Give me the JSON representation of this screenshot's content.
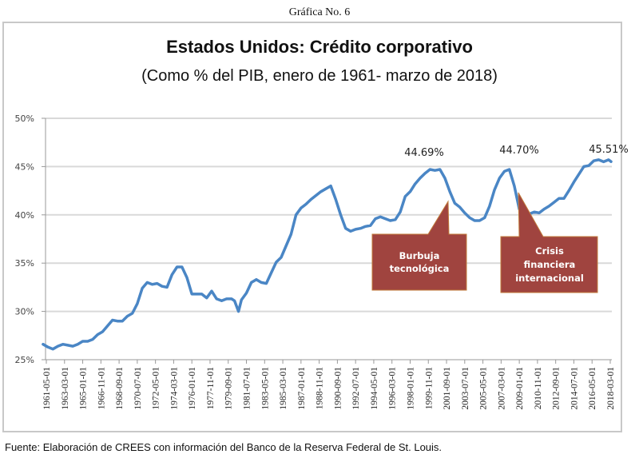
{
  "header": {
    "figure_label": "Gráfica No. 6"
  },
  "footer": {
    "source": "Fuente: Elaboración de CREES con información del Banco de la Reserva Federal de St. Louis."
  },
  "colors": {
    "line": "#4a86c5",
    "callout_fill": "#a0443f",
    "callout_border": "#c07a3a",
    "grid": "#d9d9d9"
  },
  "chart_data": {
    "type": "line",
    "title": "Estados Unidos: Crédito corporativo",
    "subtitle": "(Como % del PIB, enero de 1961- marzo de 2018)",
    "xlabel": "",
    "ylabel": "",
    "ylim": [
      25,
      50
    ],
    "y_ticks": [
      "25%",
      "30%",
      "35%",
      "40%",
      "45%",
      "50%"
    ],
    "y_tick_values": [
      25,
      30,
      35,
      40,
      45,
      50
    ],
    "grid": true,
    "legend": "none",
    "x_tick_labels": [
      "1961-05-01",
      "1963-03-01",
      "1965-01-01",
      "1966-11-01",
      "1968-09-01",
      "1970-07-01",
      "1972-05-01",
      "1974-03-01",
      "1976-01-01",
      "1977-11-01",
      "1979-09-01",
      "1981-07-01",
      "1983-05-01",
      "1985-03-01",
      "1987-01-01",
      "1988-11-01",
      "1990-09-01",
      "1992-07-01",
      "1994-05-01",
      "1996-03-01",
      "1998-01-01",
      "1999-11-01",
      "2001-09-01",
      "2003-07-01",
      "2005-05-01",
      "2007-03-01",
      "2009-01-01",
      "2010-11-01",
      "2012-09-01",
      "2014-07-01",
      "2016-05-01",
      "2018-03-01"
    ],
    "x_range": [
      1961.0,
      2018.25
    ],
    "series": [
      {
        "name": "Crédito corporativo (% del PIB)",
        "x": [
          1961.0,
          1961.5,
          1962.0,
          1962.5,
          1963.0,
          1963.5,
          1964.0,
          1964.5,
          1965.0,
          1965.5,
          1966.0,
          1966.5,
          1967.0,
          1967.5,
          1968.0,
          1968.5,
          1969.0,
          1969.5,
          1970.0,
          1970.5,
          1971.0,
          1971.5,
          1972.0,
          1972.5,
          1973.0,
          1973.5,
          1974.0,
          1974.5,
          1975.0,
          1975.5,
          1976.0,
          1976.5,
          1977.0,
          1977.5,
          1978.0,
          1978.5,
          1979.0,
          1979.5,
          1980.0,
          1980.3,
          1980.7,
          1981.0,
          1981.5,
          1982.0,
          1982.5,
          1983.0,
          1983.5,
          1984.0,
          1984.5,
          1985.0,
          1985.5,
          1986.0,
          1986.5,
          1987.0,
          1987.5,
          1988.0,
          1988.5,
          1989.0,
          1989.5,
          1990.0,
          1990.5,
          1991.0,
          1991.5,
          1992.0,
          1992.5,
          1993.0,
          1993.5,
          1994.0,
          1994.5,
          1995.0,
          1995.5,
          1996.0,
          1996.5,
          1997.0,
          1997.5,
          1998.0,
          1998.5,
          1999.0,
          1999.5,
          2000.0,
          2000.5,
          2001.0,
          2001.5,
          2002.0,
          2002.5,
          2003.0,
          2003.5,
          2004.0,
          2004.5,
          2005.0,
          2005.5,
          2006.0,
          2006.5,
          2007.0,
          2007.5,
          2008.0,
          2008.5,
          2009.0,
          2009.5,
          2010.0,
          2010.5,
          2011.0,
          2011.5,
          2012.0,
          2012.5,
          2013.0,
          2013.5,
          2014.0,
          2014.5,
          2015.0,
          2015.5,
          2016.0,
          2016.5,
          2017.0,
          2017.5,
          2018.0,
          2018.25
        ],
        "values": [
          26.6,
          26.3,
          26.1,
          26.4,
          26.6,
          26.5,
          26.4,
          26.6,
          26.9,
          26.9,
          27.1,
          27.6,
          27.9,
          28.5,
          29.1,
          29.0,
          29.0,
          29.5,
          29.8,
          30.8,
          32.4,
          33.0,
          32.8,
          32.9,
          32.6,
          32.5,
          33.8,
          34.6,
          34.6,
          33.5,
          31.8,
          31.8,
          31.8,
          31.4,
          32.1,
          31.3,
          31.1,
          31.3,
          31.3,
          31.1,
          30.0,
          31.2,
          31.9,
          33.0,
          33.3,
          33.0,
          32.9,
          34.0,
          35.1,
          35.6,
          36.8,
          38.0,
          40.0,
          40.7,
          41.1,
          41.6,
          42.0,
          42.4,
          42.7,
          43.0,
          41.6,
          40.0,
          38.6,
          38.3,
          38.5,
          38.6,
          38.8,
          38.9,
          39.6,
          39.8,
          39.6,
          39.4,
          39.5,
          40.3,
          41.9,
          42.4,
          43.2,
          43.8,
          44.3,
          44.7,
          44.6,
          44.7,
          43.8,
          42.4,
          41.2,
          40.8,
          40.2,
          39.7,
          39.4,
          39.4,
          39.7,
          40.9,
          42.6,
          43.8,
          44.5,
          44.7,
          43.0,
          40.6,
          39.9,
          40.1,
          40.3,
          40.2,
          40.6,
          40.9,
          41.3,
          41.7,
          41.7,
          42.5,
          43.4,
          44.2,
          45.0,
          45.1,
          45.6,
          45.7,
          45.5,
          45.7,
          45.51
        ]
      }
    ],
    "annotations": {
      "peak_2000": "44.69%",
      "peak_2008": "44.70%",
      "last_value": "45.51%",
      "callout_bubble": [
        "Burbuja",
        "tecnológica"
      ],
      "callout_crisis": [
        "Crisis",
        "financiera",
        "internacional"
      ]
    }
  }
}
